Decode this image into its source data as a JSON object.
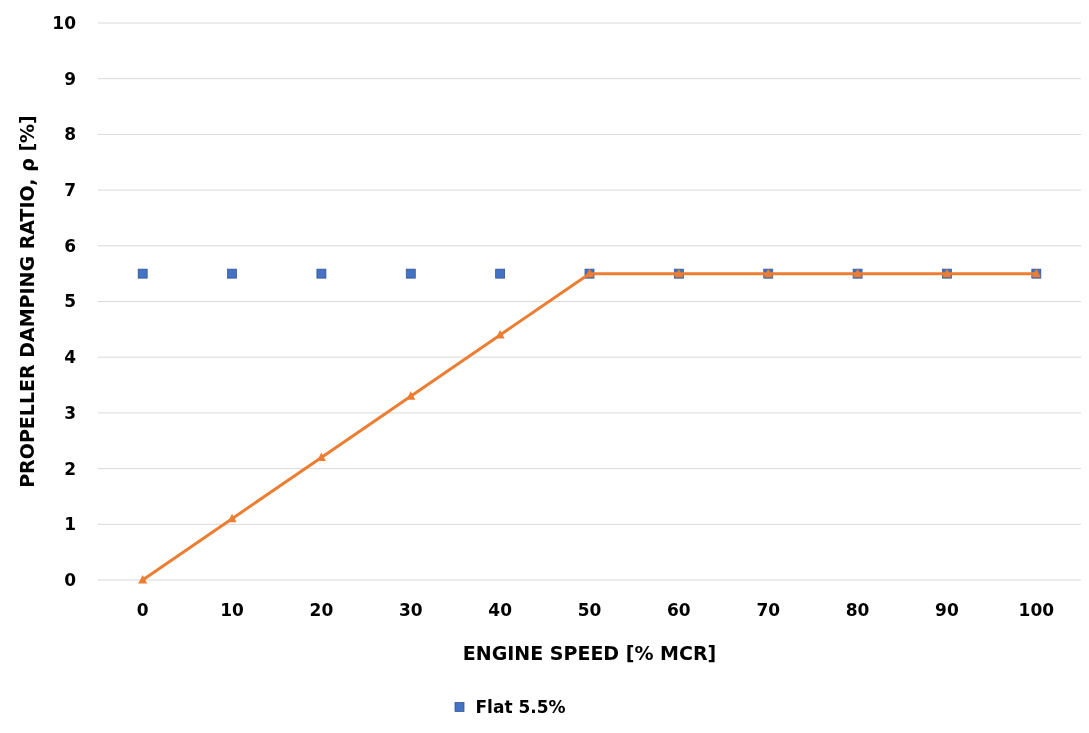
{
  "chart_data": {
    "type": "line",
    "xlabel": "ENGINE SPEED [% MCR]",
    "ylabel": "PROPELLER DAMPING RATIO, ρ [%]",
    "categories": [
      "0",
      "10",
      "20",
      "30",
      "40",
      "50",
      "60",
      "70",
      "80",
      "90",
      "100"
    ],
    "series": [
      {
        "name": "Flat 5.5%",
        "type": "scatter",
        "marker": "square",
        "color": "#4472c4",
        "values": [
          5.5,
          5.5,
          5.5,
          5.5,
          5.5,
          5.5,
          5.5,
          5.5,
          5.5,
          5.5,
          5.5
        ]
      },
      {
        "marker": "triangle",
        "color": "#ed7d31",
        "values": [
          0,
          1.1,
          2.2,
          3.3,
          4.4,
          5.5,
          5.5,
          5.5,
          5.5,
          5.5,
          5.5
        ]
      }
    ],
    "ylim": [
      0,
      10
    ],
    "yticks": [
      0,
      1,
      2,
      3,
      4,
      5,
      6,
      7,
      8,
      9,
      10
    ],
    "grid": "y",
    "legend": "bottom",
    "line_style": "solid"
  }
}
